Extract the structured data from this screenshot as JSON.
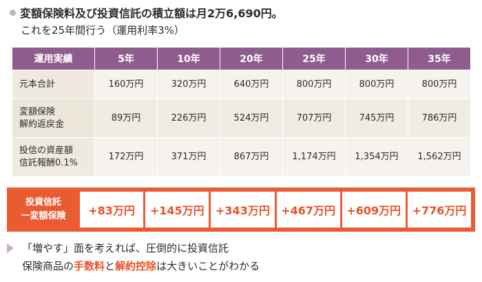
{
  "intro": {
    "line1": "変額保険料及び投資信託の積立額は月2万6,690円。",
    "line2": "これを25年間行う（運用利率3%）"
  },
  "table": {
    "header": [
      "運用実績",
      "5年",
      "10年",
      "20年",
      "25年",
      "30年",
      "35年"
    ],
    "rows": [
      {
        "label": [
          "元本合計"
        ],
        "values": [
          "160万円",
          "320万円",
          "640万円",
          "800万円",
          "800万円",
          "800万円"
        ]
      },
      {
        "label": [
          "変額保険",
          "解約返戻金"
        ],
        "values": [
          "89万円",
          "226万円",
          "524万円",
          "707万円",
          "745万円",
          "786万円"
        ]
      },
      {
        "label": [
          "投信の資産額",
          "信託報酬0.1%"
        ],
        "values": [
          "172万円",
          "371万円",
          "867万円",
          "1,174万円",
          "1,354万円",
          "1,562万円"
        ]
      }
    ]
  },
  "difference": {
    "label": [
      "投資信託",
      "ー変額保険"
    ],
    "values": [
      "+83万円",
      "+145万円",
      "+343万円",
      "+467万円",
      "+609万円",
      "+776万円"
    ]
  },
  "note": {
    "line1": "「増やす」面を考えれば、圧倒的に投資信託",
    "line2_a": "保険商品の",
    "line2_hl1": "手数料",
    "line2_b": "と",
    "line2_hl2": "解約控除",
    "line2_c": "は大きいことがわかる"
  },
  "colors": {
    "header_purple": "#8f5d8d",
    "accent_orange": "#ea5b34",
    "bullet_lilac": "#c6adc9",
    "cell_beige": "#f6f3ee"
  }
}
